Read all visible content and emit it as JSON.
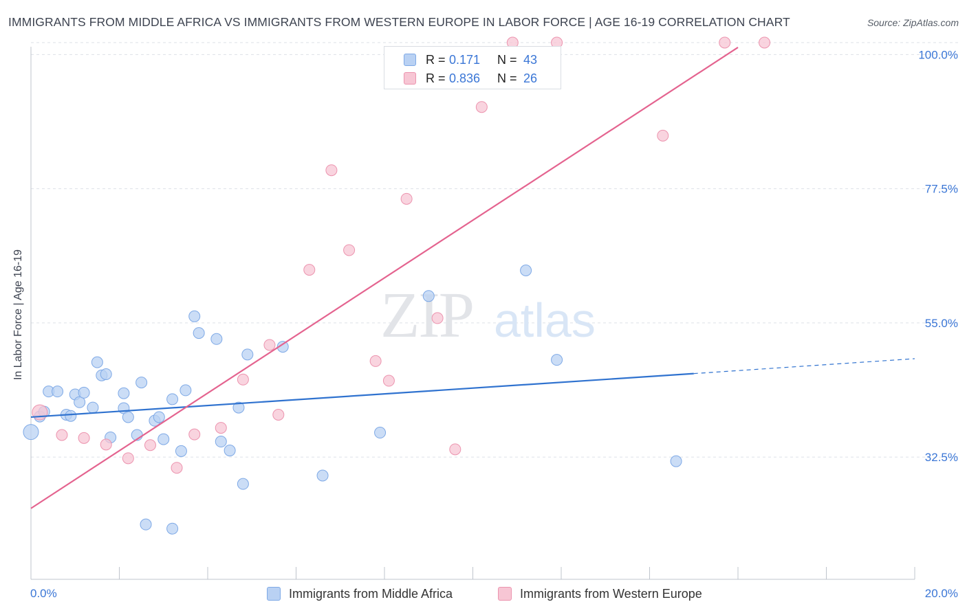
{
  "header": {
    "title": "IMMIGRANTS FROM MIDDLE AFRICA VS IMMIGRANTS FROM WESTERN EUROPE IN LABOR FORCE | AGE 16-19 CORRELATION CHART",
    "source": "Source: ZipAtlas.com"
  },
  "watermark": {
    "zip": "ZIP",
    "atlas": "atlas"
  },
  "legend": {
    "items": [
      {
        "r_label": "R =",
        "r_value": "0.171",
        "n_label": "N =",
        "n_value": "43"
      },
      {
        "r_label": "R =",
        "r_value": "0.836",
        "n_label": "N =",
        "n_value": "26"
      }
    ]
  },
  "colors": {
    "blue_fill": "#b9d1f3",
    "blue_stroke": "#7ea9e6",
    "blue_line": "#2f72cf",
    "pink_fill": "#f7c6d4",
    "pink_stroke": "#ec93ae",
    "pink_line": "#e4638f",
    "tick_label": "#3a76d6",
    "grid": "#dde1e7"
  },
  "chart_data": {
    "type": "scatter",
    "title": "IMMIGRANTS FROM MIDDLE AFRICA VS IMMIGRANTS FROM WESTERN EUROPE IN LABOR FORCE | AGE 16-19 CORRELATION CHART",
    "xlabel": "",
    "ylabel": "In Labor Force | Age 16-19",
    "xlim": [
      0,
      20
    ],
    "ylim": [
      12,
      102
    ],
    "x_tick_labels": [
      "0.0%",
      "20.0%"
    ],
    "y_ticks": [
      32.5,
      55.0,
      77.5,
      100.0
    ],
    "y_tick_labels": [
      "32.5%",
      "55.0%",
      "77.5%",
      "100.0%"
    ],
    "grid": true,
    "legend_position": "top-center",
    "series": [
      {
        "name": "Immigrants from Middle Africa",
        "color": "#b9d1f3",
        "points": [
          [
            0.0,
            36.7
          ],
          [
            0.2,
            39.3
          ],
          [
            0.3,
            40.1
          ],
          [
            0.4,
            43.5
          ],
          [
            0.6,
            43.5
          ],
          [
            0.8,
            39.6
          ],
          [
            0.9,
            39.4
          ],
          [
            1.0,
            43.0
          ],
          [
            1.1,
            41.7
          ],
          [
            1.2,
            43.3
          ],
          [
            1.4,
            40.8
          ],
          [
            1.5,
            48.4
          ],
          [
            1.6,
            46.2
          ],
          [
            1.7,
            46.4
          ],
          [
            1.8,
            35.8
          ],
          [
            2.1,
            40.7
          ],
          [
            2.1,
            43.2
          ],
          [
            2.2,
            39.2
          ],
          [
            2.4,
            36.2
          ],
          [
            2.5,
            45.0
          ],
          [
            2.6,
            21.2
          ],
          [
            2.8,
            38.6
          ],
          [
            2.9,
            39.2
          ],
          [
            3.0,
            35.5
          ],
          [
            3.2,
            42.2
          ],
          [
            3.2,
            20.5
          ],
          [
            3.4,
            33.5
          ],
          [
            3.5,
            43.7
          ],
          [
            3.7,
            56.1
          ],
          [
            3.8,
            53.3
          ],
          [
            4.2,
            52.3
          ],
          [
            4.3,
            35.1
          ],
          [
            4.5,
            33.6
          ],
          [
            4.7,
            40.8
          ],
          [
            4.8,
            28.0
          ],
          [
            4.9,
            49.7
          ],
          [
            5.7,
            51.0
          ],
          [
            6.6,
            29.4
          ],
          [
            7.9,
            36.6
          ],
          [
            9.0,
            59.5
          ],
          [
            11.2,
            63.8
          ],
          [
            11.9,
            48.8
          ],
          [
            14.6,
            31.8
          ]
        ]
      },
      {
        "name": "Immigrants from Western Europe",
        "color": "#f7c6d4",
        "points": [
          [
            0.2,
            40.0
          ],
          [
            0.7,
            36.2
          ],
          [
            1.2,
            35.7
          ],
          [
            1.7,
            34.6
          ],
          [
            2.2,
            32.3
          ],
          [
            2.7,
            34.5
          ],
          [
            3.3,
            30.7
          ],
          [
            3.7,
            36.3
          ],
          [
            4.3,
            37.4
          ],
          [
            4.8,
            45.5
          ],
          [
            5.4,
            51.3
          ],
          [
            5.6,
            39.6
          ],
          [
            6.3,
            63.9
          ],
          [
            6.8,
            80.6
          ],
          [
            7.2,
            67.2
          ],
          [
            7.8,
            48.6
          ],
          [
            8.1,
            45.3
          ],
          [
            8.5,
            75.8
          ],
          [
            9.2,
            55.8
          ],
          [
            9.6,
            33.8
          ],
          [
            10.2,
            91.2
          ],
          [
            10.9,
            102.0
          ],
          [
            11.9,
            102.0
          ],
          [
            14.3,
            86.4
          ],
          [
            15.7,
            102.0
          ],
          [
            16.6,
            102.0
          ]
        ]
      }
    ],
    "trend_lines": [
      {
        "series": "Immigrants from Middle Africa",
        "from": [
          0,
          39.2
        ],
        "to": [
          15.0,
          46.5
        ],
        "dashed_to": [
          20.0,
          49.0
        ]
      },
      {
        "series": "Immigrants from Western Europe",
        "from": [
          0,
          23.9
        ],
        "to": [
          16.0,
          101.2
        ]
      }
    ]
  }
}
